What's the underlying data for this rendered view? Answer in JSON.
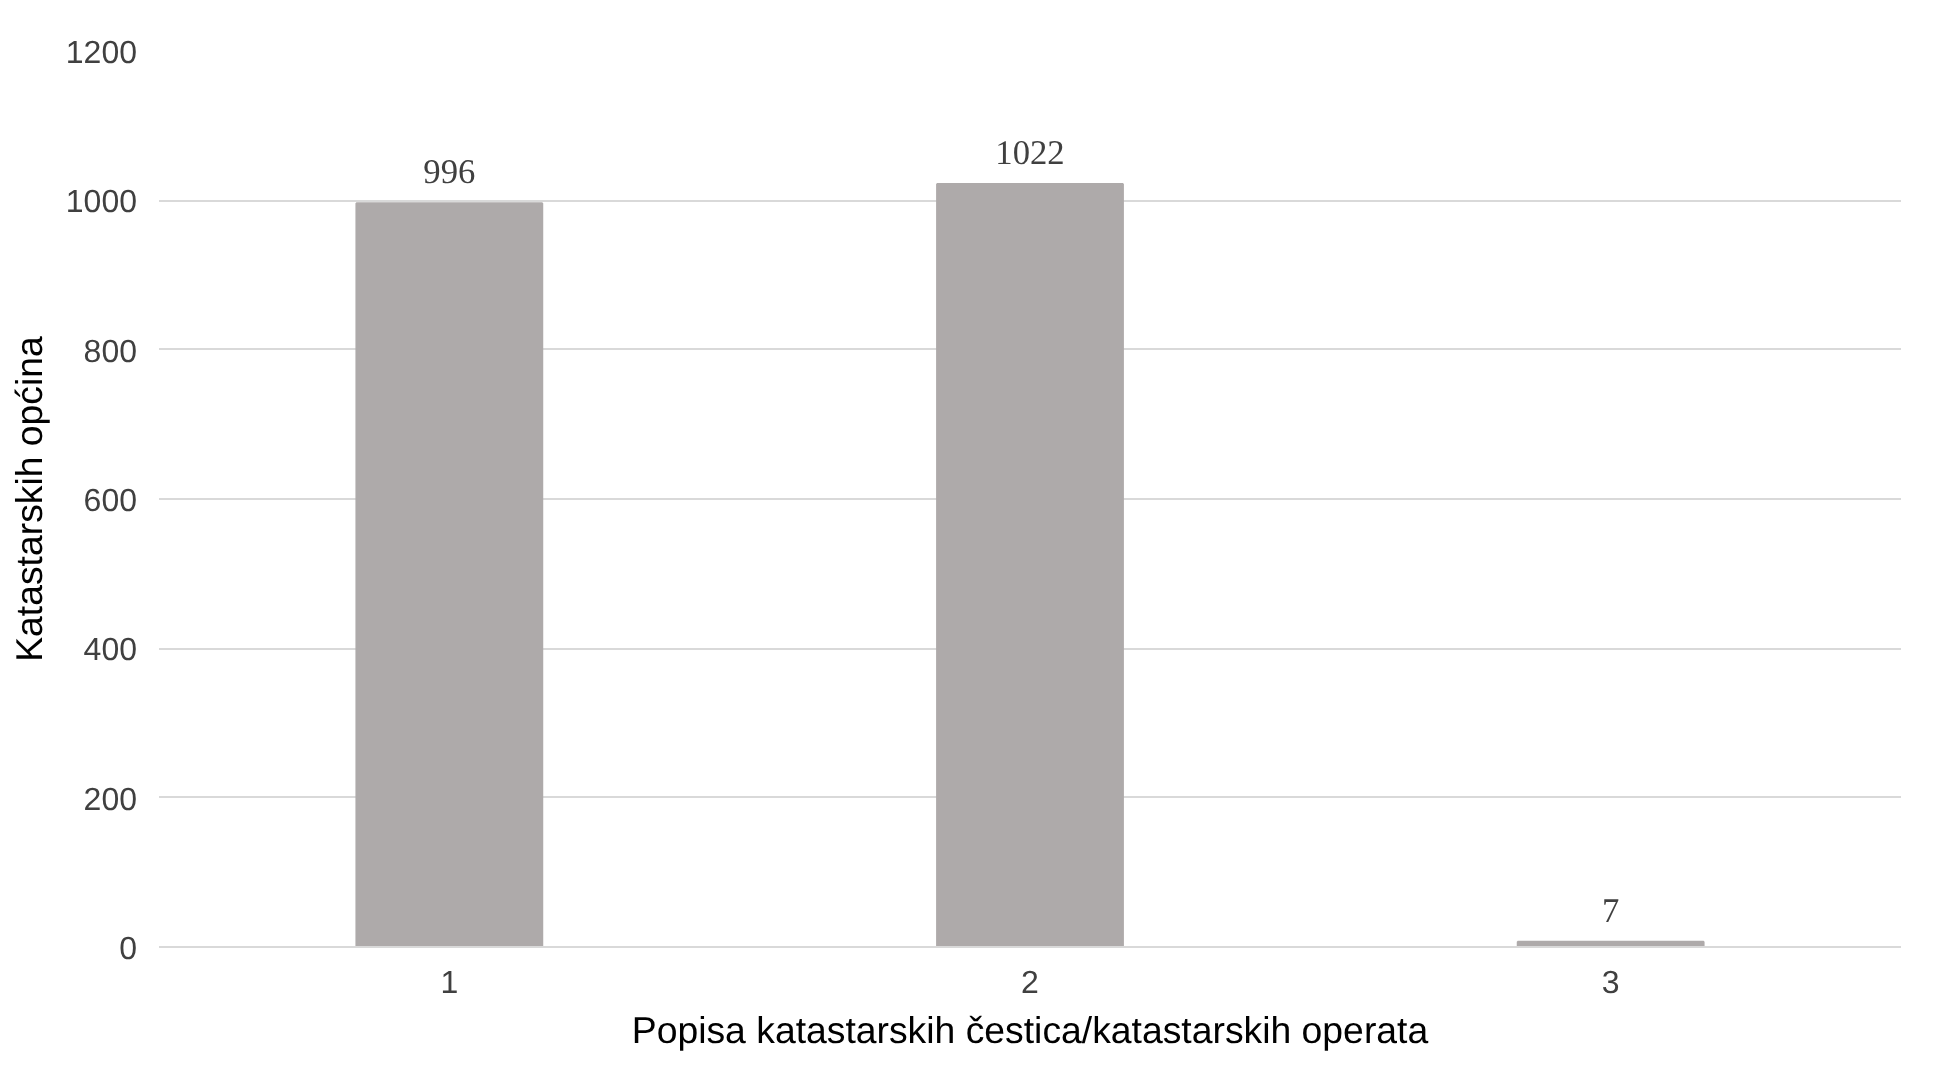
{
  "chart_data": {
    "type": "bar",
    "xlabel": "Popisa katastarskih čestica/katastarskih operata",
    "ylabel": "Katastarskih općina",
    "categories": [
      "1",
      "2",
      "3"
    ],
    "values": [
      996,
      1022,
      7
    ],
    "color": "#aeaaaa",
    "ylim": [
      0,
      1200
    ],
    "yticks": [
      0,
      200,
      400,
      600,
      800,
      1000,
      1200
    ],
    "grid": "y",
    "data_labels": true
  }
}
